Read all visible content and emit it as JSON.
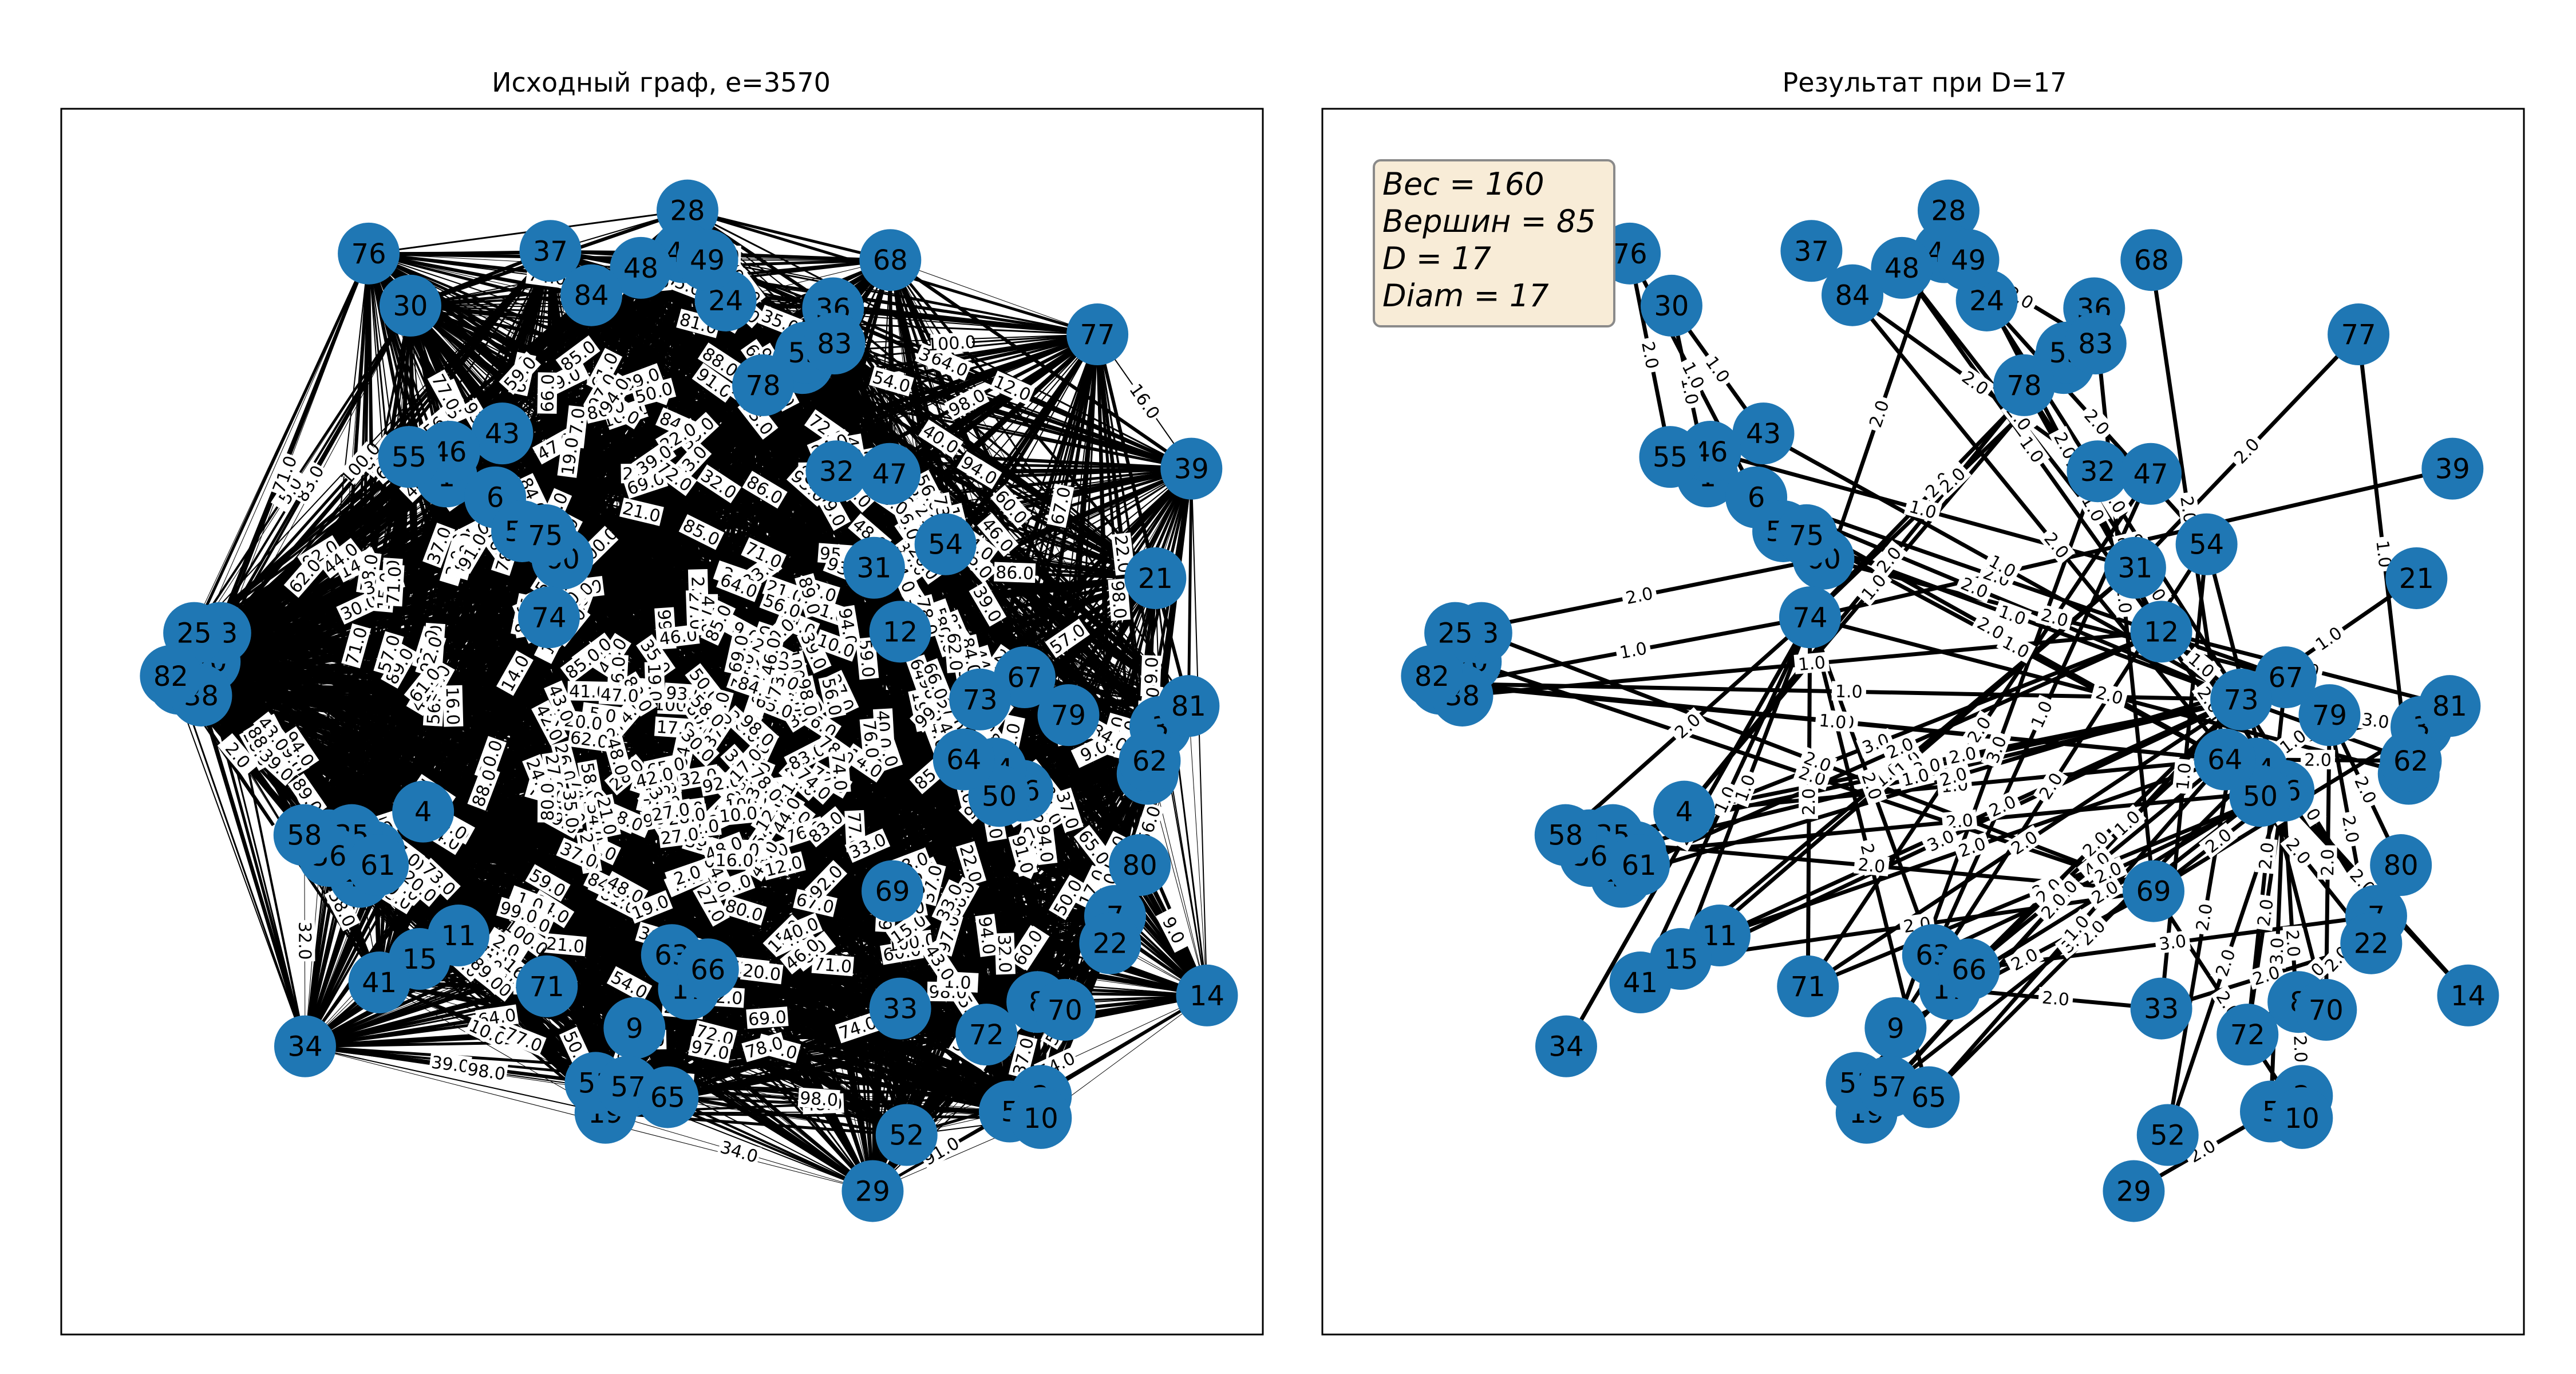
{
  "colors": {
    "node": "#1f77b4",
    "edge": "#000000",
    "info_bg": "#f8ecd7",
    "info_border": "#8a8a8a"
  },
  "left": {
    "title": "Исходный граф, e=3570",
    "edge_labels_sample": [
      "100.0",
      "81.0",
      "44.0",
      "62.0",
      "17.0",
      "70.0",
      "71.0",
      "24.0",
      "30.0",
      "64.0",
      "41.0",
      "99.0",
      "42.0",
      "16.0",
      "54.0",
      "92.0",
      "27.0",
      "69.0",
      "96.0",
      "100.0",
      "61.0",
      "2.0",
      "10.0",
      "58.0",
      "77.0",
      "22.0",
      "48.0",
      "74.0",
      "34.0",
      "97.0",
      "27.0",
      "46.0",
      "35.0",
      "15.0",
      "50.0",
      "84.0",
      "71.0",
      "83.0",
      "93.0",
      "5.0",
      "84.0",
      "28.0",
      "73.0",
      "21.0",
      "20.0",
      "40.0",
      "86.0",
      "46.0",
      "94.0",
      "67.0",
      "95.0",
      "85.0",
      "57.0",
      "43.0",
      "98.0",
      "91.0",
      "59.0",
      "80.0",
      "33.0",
      "78.0",
      "37.0",
      "72.0",
      "56.0",
      "91.0",
      "19.0",
      "39.0",
      "32.0",
      "98.0",
      "94.0",
      "47.0",
      "39.0",
      "26.0",
      "54.0",
      "14.0",
      "1.0",
      "65.0",
      "9.0",
      "12.0",
      "89.0",
      "74.0",
      "35.0",
      "56.0",
      "43.0",
      "60.0",
      "3.0",
      "88.0",
      "76.0",
      "8.0",
      "69.0",
      "66.0"
    ]
  },
  "right": {
    "title": "Результат при D=17",
    "info": {
      "line1": "Вес = 160",
      "line2": "Вершин = 85",
      "line3": "D = 17",
      "line4": "Diam = 17"
    }
  },
  "nodes": [
    {
      "id": "0",
      "a": [
        49.1,
        51.9
      ],
      "b": [
        9.0,
        51.9
      ]
    },
    {
      "id": "1",
      "a": [
        84.5,
        67.8
      ],
      "b": [
        44.5,
        67.8
      ]
    },
    {
      "id": "2",
      "a": [
        168.6,
        20.3
      ],
      "b": [
        128.6,
        20.3
      ]
    },
    {
      "id": "3",
      "a": [
        185.5,
        48.6
      ],
      "b": [
        145.5,
        48.6
      ]
    },
    {
      "id": "4",
      "a": [
        81.2,
        42.1
      ],
      "b": [
        41.2,
        42.1
      ]
    },
    {
      "id": "5",
      "a": [
        164.2,
        19.1
      ],
      "b": [
        124.2,
        19.1
      ]
    },
    {
      "id": "6",
      "a": [
        91.4,
        66.2
      ],
      "b": [
        51.4,
        66.2
      ]
    },
    {
      "id": "7",
      "a": [
        179.1,
        34.1
      ],
      "b": [
        139.1,
        34.1
      ]
    },
    {
      "id": "8",
      "a": [
        168.1,
        27.5
      ],
      "b": [
        128.1,
        27.5
      ]
    },
    {
      "id": "9",
      "a": [
        111.1,
        25.5
      ],
      "b": [
        71.1,
        25.5
      ]
    },
    {
      "id": "10",
      "a": [
        168.6,
        18.6
      ],
      "b": [
        128.6,
        18.6
      ]
    },
    {
      "id": "11",
      "a": [
        86.2,
        32.6
      ],
      "b": [
        46.2,
        32.6
      ]
    },
    {
      "id": "12",
      "a": [
        148.7,
        55.9
      ],
      "b": [
        108.7,
        55.9
      ]
    },
    {
      "id": "13",
      "a": [
        67.8,
        39.9
      ],
      "b": [
        27.8,
        39.9
      ]
    },
    {
      "id": "14",
      "a": [
        192.1,
        28.0
      ],
      "b": [
        152.1,
        28.0
      ]
    },
    {
      "id": "15",
      "a": [
        80.7,
        30.8
      ],
      "b": [
        40.7,
        30.8
      ]
    },
    {
      "id": "16",
      "a": [
        166.0,
        43.7
      ],
      "b": [
        126.0,
        43.7
      ]
    },
    {
      "id": "17",
      "a": [
        118.8,
        28.5
      ],
      "b": [
        78.8,
        28.5
      ]
    },
    {
      "id": "18",
      "a": [
        183.7,
        45.0
      ],
      "b": [
        143.7,
        45.0
      ]
    },
    {
      "id": "19",
      "a": [
        107.0,
        19.0
      ],
      "b": [
        67.0,
        19.0
      ]
    },
    {
      "id": "20",
      "a": [
        51.0,
        53.6
      ],
      "b": [
        11.0,
        53.6
      ]
    },
    {
      "id": "21",
      "a": [
        184.8,
        60.0
      ],
      "b": [
        144.8,
        60.0
      ]
    },
    {
      "id": "22",
      "a": [
        178.4,
        32.0
      ],
      "b": [
        138.4,
        32.0
      ]
    },
    {
      "id": "23",
      "a": [
        52.5,
        55.8
      ],
      "b": [
        12.5,
        55.8
      ]
    },
    {
      "id": "24",
      "a": [
        124.0,
        81.3
      ],
      "b": [
        84.0,
        81.3
      ]
    },
    {
      "id": "25",
      "a": [
        48.8,
        55.8
      ],
      "b": [
        8.8,
        55.8
      ]
    },
    {
      "id": "26",
      "a": [
        46.7,
        51.9
      ],
      "b": [
        6.7,
        51.9
      ]
    },
    {
      "id": "27",
      "a": [
        74.3,
        39.0
      ],
      "b": [
        34.3,
        39.0
      ]
    },
    {
      "id": "28",
      "a": [
        118.6,
        88.2
      ],
      "b": [
        78.6,
        88.2
      ]
    },
    {
      "id": "29",
      "a": [
        144.8,
        13.0
      ],
      "b": [
        104.8,
        13.0
      ]
    },
    {
      "id": "30",
      "a": [
        79.4,
        80.9
      ],
      "b": [
        39.4,
        80.9
      ]
    },
    {
      "id": "31",
      "a": [
        145.0,
        60.8
      ],
      "b": [
        105.0,
        60.8
      ]
    },
    {
      "id": "32",
      "a": [
        139.7,
        68.2
      ],
      "b": [
        99.7,
        68.2
      ]
    },
    {
      "id": "33",
      "a": [
        148.7,
        27.0
      ],
      "b": [
        108.7,
        27.0
      ]
    },
    {
      "id": "34",
      "a": [
        64.5,
        24.1
      ],
      "b": [
        24.5,
        24.1
      ]
    },
    {
      "id": "35",
      "a": [
        71.1,
        40.3
      ],
      "b": [
        31.1,
        40.3
      ]
    },
    {
      "id": "36",
      "a": [
        139.2,
        80.7
      ],
      "b": [
        99.2,
        80.7
      ]
    },
    {
      "id": "37",
      "a": [
        99.2,
        85.1
      ],
      "b": [
        59.2,
        85.1
      ]
    },
    {
      "id": "38",
      "a": [
        49.8,
        51.0
      ],
      "b": [
        9.8,
        51.0
      ]
    },
    {
      "id": "39",
      "a": [
        189.9,
        68.4
      ],
      "b": [
        149.9,
        68.4
      ]
    },
    {
      "id": "40",
      "a": [
        72.3,
        37.1
      ],
      "b": [
        32.3,
        37.1
      ]
    },
    {
      "id": "41",
      "a": [
        75.0,
        29.0
      ],
      "b": [
        35.0,
        29.0
      ]
    },
    {
      "id": "42",
      "a": [
        118.0,
        85.0
      ],
      "b": [
        78.0,
        85.0
      ]
    },
    {
      "id": "43",
      "a": [
        92.4,
        71.1
      ],
      "b": [
        52.4,
        71.1
      ]
    },
    {
      "id": "44",
      "a": [
        162.2,
        45.4
      ],
      "b": [
        122.2,
        45.4
      ]
    },
    {
      "id": "45",
      "a": [
        134.9,
        76.5
      ],
      "b": [
        94.9,
        76.5
      ]
    },
    {
      "id": "46",
      "a": [
        84.9,
        69.7
      ],
      "b": [
        44.9,
        69.7
      ]
    },
    {
      "id": "47",
      "a": [
        147.2,
        68.0
      ],
      "b": [
        107.2,
        68.0
      ]
    },
    {
      "id": "48",
      "a": [
        112.0,
        83.8
      ],
      "b": [
        72.0,
        83.8
      ]
    },
    {
      "id": "49",
      "a": [
        121.4,
        84.4
      ],
      "b": [
        81.4,
        84.4
      ]
    },
    {
      "id": "50",
      "a": [
        162.7,
        43.3
      ],
      "b": [
        122.7,
        43.3
      ]
    },
    {
      "id": "51",
      "a": [
        105.6,
        21.3
      ],
      "b": [
        65.6,
        21.3
      ]
    },
    {
      "id": "52",
      "a": [
        149.6,
        17.3
      ],
      "b": [
        109.6,
        17.3
      ]
    },
    {
      "id": "53",
      "a": [
        135.3,
        77.3
      ],
      "b": [
        95.3,
        77.3
      ]
    },
    {
      "id": "54",
      "a": [
        155.1,
        62.6
      ],
      "b": [
        115.1,
        62.6
      ]
    },
    {
      "id": "55",
      "a": [
        79.2,
        69.3
      ],
      "b": [
        39.2,
        69.3
      ]
    },
    {
      "id": "56",
      "a": [
        67.9,
        38.7
      ],
      "b": [
        27.9,
        38.7
      ]
    },
    {
      "id": "57",
      "a": [
        110.2,
        21.0
      ],
      "b": [
        70.2,
        21.0
      ]
    },
    {
      "id": "58",
      "a": [
        64.4,
        40.3
      ],
      "b": [
        24.4,
        40.3
      ]
    },
    {
      "id": "59",
      "a": [
        95.2,
        63.6
      ],
      "b": [
        55.2,
        63.6
      ]
    },
    {
      "id": "60",
      "a": [
        100.9,
        61.5
      ],
      "b": [
        60.9,
        61.5
      ]
    },
    {
      "id": "61",
      "a": [
        74.8,
        38.0
      ],
      "b": [
        34.8,
        38.0
      ]
    },
    {
      "id": "62",
      "a": [
        184.0,
        46.0
      ],
      "b": [
        144.0,
        46.0
      ]
    },
    {
      "id": "63",
      "a": [
        116.4,
        31.1
      ],
      "b": [
        76.4,
        31.1
      ]
    },
    {
      "id": "64",
      "a": [
        157.7,
        46.1
      ],
      "b": [
        117.7,
        46.1
      ]
    },
    {
      "id": "65",
      "a": [
        115.8,
        20.2
      ],
      "b": [
        75.8,
        20.2
      ]
    },
    {
      "id": "66",
      "a": [
        121.5,
        30.0
      ],
      "b": [
        81.5,
        30.0
      ]
    },
    {
      "id": "67",
      "a": [
        166.3,
        52.4
      ],
      "b": [
        126.3,
        52.4
      ]
    },
    {
      "id": "68",
      "a": [
        147.3,
        84.4
      ],
      "b": [
        107.3,
        84.4
      ]
    },
    {
      "id": "69",
      "a": [
        147.6,
        36.0
      ],
      "b": [
        107.6,
        36.0
      ]
    },
    {
      "id": "70",
      "a": [
        172.0,
        26.9
      ],
      "b": [
        132.0,
        26.9
      ]
    },
    {
      "id": "71",
      "a": [
        98.7,
        28.7
      ],
      "b": [
        58.7,
        28.7
      ]
    },
    {
      "id": "72",
      "a": [
        160.9,
        25.0
      ],
      "b": [
        120.9,
        25.0
      ]
    },
    {
      "id": "73",
      "a": [
        160.0,
        50.7
      ],
      "b": [
        120.0,
        50.7
      ]
    },
    {
      "id": "74",
      "a": [
        99.0,
        57.0
      ],
      "b": [
        59.0,
        57.0
      ]
    },
    {
      "id": "75",
      "a": [
        98.5,
        63.3
      ],
      "b": [
        58.5,
        63.3
      ]
    },
    {
      "id": "76",
      "a": [
        73.5,
        84.9
      ],
      "b": [
        33.5,
        84.9
      ]
    },
    {
      "id": "77",
      "a": [
        176.6,
        78.7
      ],
      "b": [
        136.6,
        78.7
      ]
    },
    {
      "id": "78",
      "a": [
        129.3,
        74.8
      ],
      "b": [
        89.3,
        74.8
      ]
    },
    {
      "id": "79",
      "a": [
        172.5,
        49.5
      ],
      "b": [
        132.5,
        49.5
      ]
    },
    {
      "id": "80",
      "a": [
        182.6,
        38.0
      ],
      "b": [
        142.6,
        38.0
      ]
    },
    {
      "id": "81",
      "a": [
        189.5,
        50.2
      ],
      "b": [
        149.5,
        50.2
      ]
    },
    {
      "id": "82",
      "a": [
        45.5,
        52.5
      ],
      "b": [
        5.5,
        52.5
      ]
    },
    {
      "id": "83",
      "a": [
        139.4,
        78.0
      ],
      "b": [
        99.4,
        78.0
      ]
    },
    {
      "id": "84",
      "a": [
        105.0,
        81.7
      ],
      "b": [
        65.0,
        81.7
      ]
    }
  ],
  "result_edges": [
    [
      "0",
      "74",
      "1.0"
    ],
    [
      "0",
      "73",
      "1.0"
    ],
    [
      "0",
      "64",
      "1.0"
    ],
    [
      "25",
      "60",
      "2.0"
    ],
    [
      "30",
      "43",
      "1.0"
    ],
    [
      "37",
      "84",
      "2.0"
    ],
    [
      "84",
      "48",
      "2.0"
    ],
    [
      "84",
      "32",
      "2.0"
    ],
    [
      "84",
      "50",
      "2.0"
    ],
    [
      "48",
      "12",
      "1.0"
    ],
    [
      "48",
      "31",
      "2.0"
    ],
    [
      "28",
      "74",
      "2.0"
    ],
    [
      "42",
      "83",
      "2.0"
    ],
    [
      "49",
      "12",
      "2.0"
    ],
    [
      "24",
      "54",
      "2.0"
    ],
    [
      "24",
      "73",
      "2.0"
    ],
    [
      "78",
      "12",
      "1.0"
    ],
    [
      "78",
      "16",
      "2.0"
    ],
    [
      "53",
      "74",
      "2.0"
    ],
    [
      "45",
      "4",
      "1.0"
    ],
    [
      "83",
      "74",
      "2.0"
    ],
    [
      "36",
      "4",
      "2.0"
    ],
    [
      "36",
      "69",
      "2.0"
    ],
    [
      "68",
      "64",
      "2.0"
    ],
    [
      "32",
      "9",
      "3.0"
    ],
    [
      "47",
      "71",
      "2.0"
    ],
    [
      "47",
      "63",
      "1.0"
    ],
    [
      "77",
      "31",
      "2.0"
    ],
    [
      "77",
      "18",
      "1.0"
    ],
    [
      "39",
      "74",
      "2.0"
    ],
    [
      "54",
      "9",
      "2.0"
    ],
    [
      "54",
      "33",
      "1.0"
    ],
    [
      "21",
      "73",
      "1.0"
    ],
    [
      "81",
      "64",
      "2.0"
    ],
    [
      "81",
      "12",
      "2.0"
    ],
    [
      "3",
      "79",
      "3.0"
    ],
    [
      "3",
      "69",
      "2.0"
    ],
    [
      "62",
      "73",
      "1.0"
    ],
    [
      "62",
      "64",
      "2.0"
    ],
    [
      "18",
      "74",
      "2.0"
    ],
    [
      "12",
      "56",
      "3.0"
    ],
    [
      "31",
      "41",
      "1.0"
    ],
    [
      "31",
      "15",
      "1.0"
    ],
    [
      "6",
      "64",
      "2.0"
    ],
    [
      "60",
      "67",
      "2.0"
    ],
    [
      "74",
      "41",
      "1.0"
    ],
    [
      "74",
      "15",
      "1.0"
    ],
    [
      "74",
      "71",
      "2.0"
    ],
    [
      "74",
      "63",
      "2.0"
    ],
    [
      "74",
      "65",
      "2.0"
    ],
    [
      "74",
      "34",
      "1.0"
    ],
    [
      "73",
      "71",
      "2.0"
    ],
    [
      "73",
      "17",
      "2.0"
    ],
    [
      "67",
      "66",
      "1.0"
    ],
    [
      "67",
      "72",
      "2.0"
    ],
    [
      "79",
      "44",
      "1.0"
    ],
    [
      "79",
      "22",
      "2.0"
    ],
    [
      "79",
      "70",
      "2.0"
    ],
    [
      "64",
      "66",
      "4.0"
    ],
    [
      "64",
      "11",
      "2.0"
    ],
    [
      "50",
      "17",
      "2.0"
    ],
    [
      "50",
      "57",
      "3.0"
    ],
    [
      "44",
      "65",
      "2.0"
    ],
    [
      "16",
      "72",
      "2.0"
    ],
    [
      "16",
      "52",
      "2.0"
    ],
    [
      "16",
      "5",
      "3.0"
    ],
    [
      "16",
      "14",
      "2.0"
    ],
    [
      "1",
      "73",
      "2.0"
    ],
    [
      "1",
      "67",
      "2.0"
    ],
    [
      "43",
      "73",
      "1.0"
    ],
    [
      "4",
      "73",
      "2.0"
    ],
    [
      "4",
      "64",
      "1.0"
    ],
    [
      "61",
      "12",
      "2.0"
    ],
    [
      "35",
      "73",
      "2.0"
    ],
    [
      "40",
      "67",
      "2.0"
    ],
    [
      "13",
      "69",
      "2.0"
    ],
    [
      "58",
      "74",
      "2.0"
    ],
    [
      "56",
      "73",
      "1.0"
    ],
    [
      "27",
      "16",
      "2.0"
    ],
    [
      "11",
      "67",
      "2.0"
    ],
    [
      "15",
      "69",
      "2.0"
    ],
    [
      "41",
      "73",
      "3.0"
    ],
    [
      "34",
      "74",
      "2.0"
    ],
    [
      "71",
      "16",
      "2.0"
    ],
    [
      "9",
      "69",
      "2.0"
    ],
    [
      "63",
      "16",
      "2.0"
    ],
    [
      "17",
      "33",
      "2.0"
    ],
    [
      "66",
      "7",
      "3.0"
    ],
    [
      "51",
      "73",
      "2.0"
    ],
    [
      "57",
      "73",
      "2.0"
    ],
    [
      "19",
      "73",
      "2.0"
    ],
    [
      "65",
      "64",
      "1.0"
    ],
    [
      "33",
      "22",
      "2.0"
    ],
    [
      "72",
      "7",
      "3.0"
    ],
    [
      "8",
      "7",
      "2.0"
    ],
    [
      "70",
      "54",
      "1.0"
    ],
    [
      "2",
      "8",
      "2.0"
    ],
    [
      "2",
      "16",
      "2.0"
    ],
    [
      "5",
      "29",
      "2.0"
    ],
    [
      "10",
      "69",
      "2.0"
    ],
    [
      "7",
      "73",
      "2.0"
    ],
    [
      "22",
      "64",
      "2.0"
    ],
    [
      "14",
      "44",
      "2.0"
    ],
    [
      "80",
      "79",
      "2.0"
    ],
    [
      "52",
      "73",
      "2.0"
    ],
    [
      "26",
      "64",
      "1.0"
    ],
    [
      "82",
      "0",
      "1.0"
    ],
    [
      "38",
      "12",
      "1.0"
    ],
    [
      "20",
      "69",
      "2.0"
    ],
    [
      "23",
      "69",
      "2.0"
    ],
    [
      "55",
      "76",
      "2.0"
    ],
    [
      "46",
      "31",
      "1.0"
    ],
    [
      "59",
      "73",
      "1.0"
    ],
    [
      "75",
      "64",
      "1.0"
    ],
    [
      "30",
      "1",
      "1.0"
    ],
    [
      "69",
      "16",
      "2.0"
    ],
    [
      "44",
      "12",
      "2.0"
    ],
    [
      "12",
      "73",
      "1.0"
    ],
    [
      "76",
      "6",
      "1.0"
    ],
    [
      "6",
      "60",
      "1.0"
    ]
  ]
}
